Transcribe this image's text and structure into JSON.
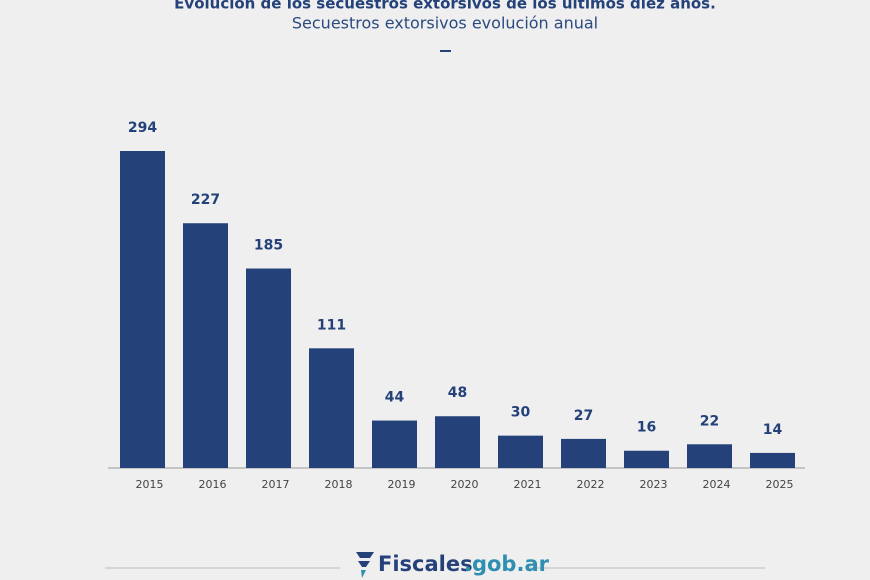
{
  "chart_data": {
    "type": "bar",
    "title": "Evolución de los secuestros extorsivos de los últimos diez años.",
    "subtitle": "Secuestros extorsivos evolución anual",
    "categories": [
      "2015",
      "2016",
      "2017",
      "2018",
      "2019",
      "2020",
      "2021",
      "2022",
      "2023",
      "2024",
      "2025"
    ],
    "values": [
      294,
      227,
      185,
      111,
      44,
      48,
      30,
      27,
      16,
      22,
      14
    ],
    "color": "#24417a"
  },
  "footer": {
    "brand": "Fiscales",
    "domain": ".gob.ar"
  }
}
